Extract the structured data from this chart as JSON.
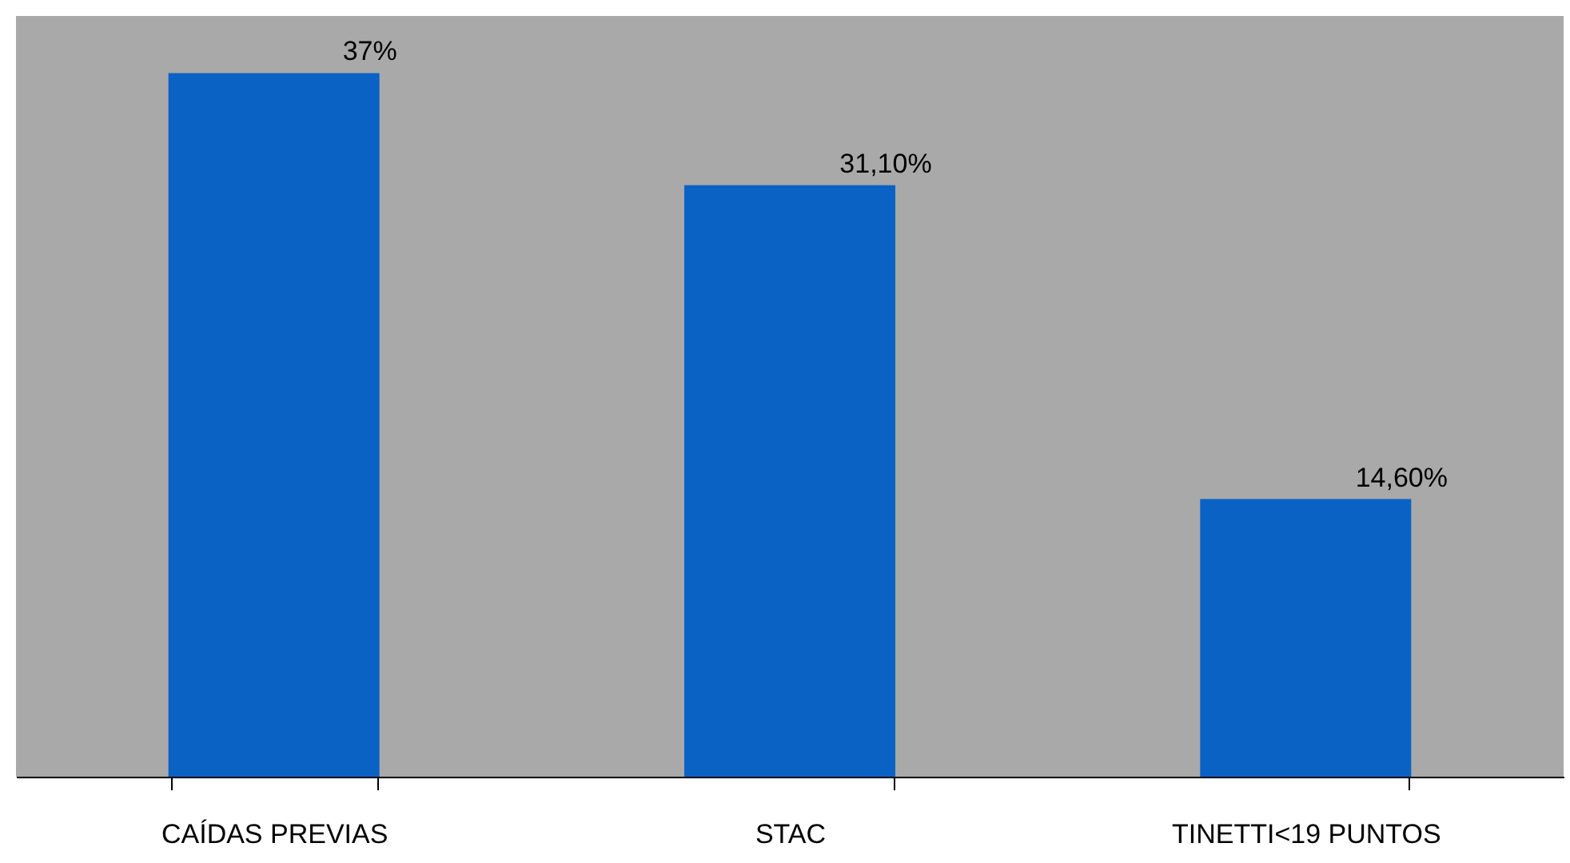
{
  "chart_data": {
    "type": "bar",
    "categories": [
      "CAÍDAS PREVIAS",
      "STAC",
      "TINETTI<19 PUNTOS"
    ],
    "values": [
      37,
      31.1,
      14.6
    ],
    "value_labels": [
      "37%",
      "31,10%",
      "14,60%"
    ],
    "color": "#0a62c4",
    "tick_labels": "x",
    "grid": false
  }
}
